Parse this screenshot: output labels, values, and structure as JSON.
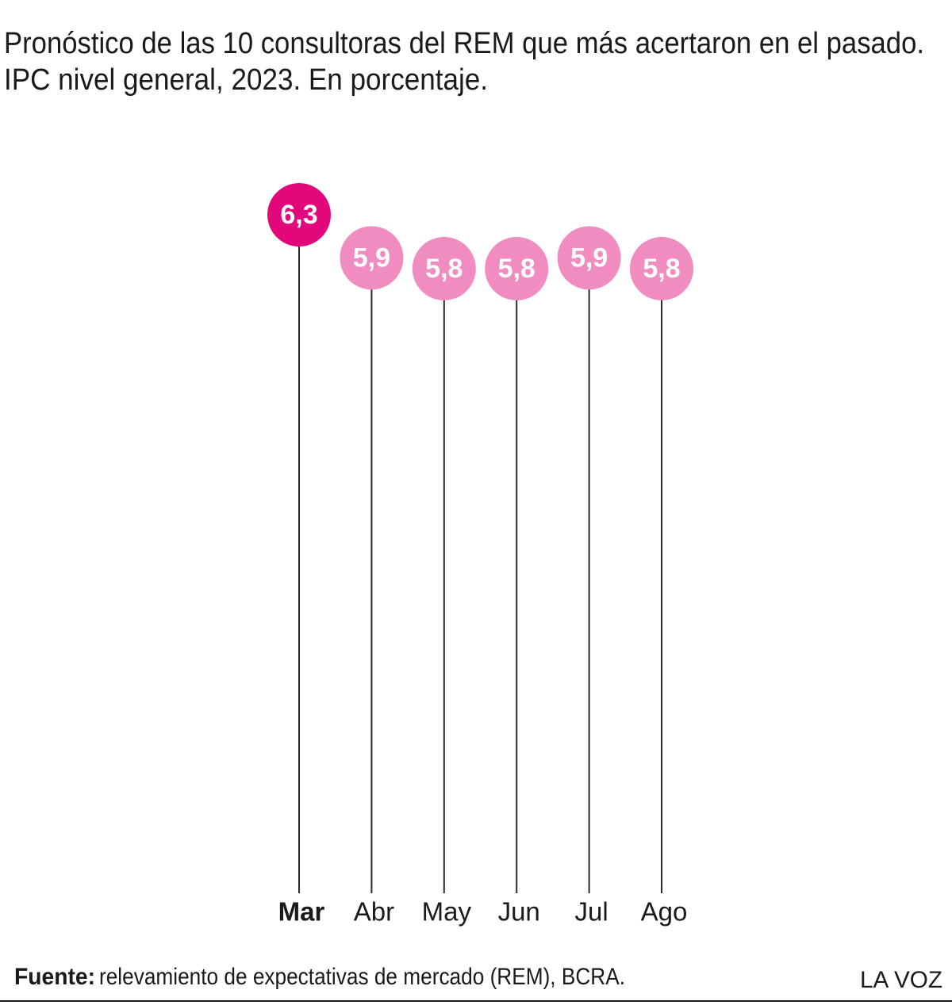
{
  "chart_data": {
    "type": "lollipop",
    "title": [
      "Pronóstico de las 10 consultoras del REM que más acertaron en el pasado.",
      "IPC nivel general, 2023. En porcentaje."
    ],
    "categories": [
      "Mar",
      "Abr",
      "May",
      "Jun",
      "Jul",
      "Ago"
    ],
    "values": [
      6.3,
      5.9,
      5.8,
      5.8,
      5.9,
      5.8
    ],
    "value_labels": [
      "6,3",
      "5,9",
      "5,8",
      "5,8",
      "5,9",
      "5,8"
    ],
    "colors": [
      "#e2077b",
      "#f08cbf",
      "#f08cbf",
      "#f08cbf",
      "#f08cbf",
      "#f08cbf"
    ],
    "highlight_index": 0,
    "ylim": [
      0,
      6.3
    ],
    "source_label": "Fuente:",
    "source": "relevamiento de expectativas de mercado (REM), BCRA.",
    "brand": "LA VOZ"
  }
}
